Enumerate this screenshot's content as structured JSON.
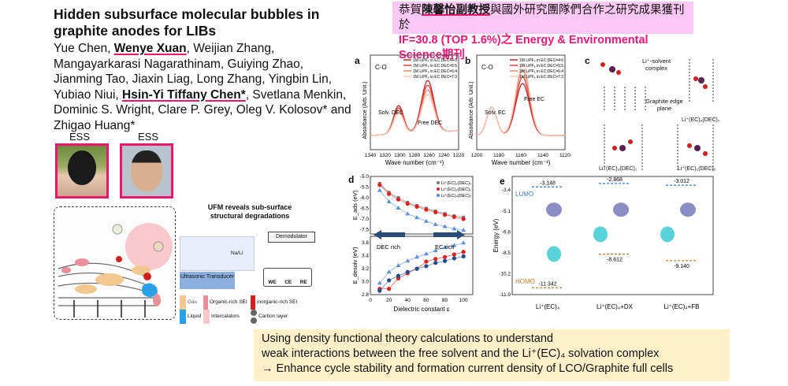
{
  "title": "Hidden subsurface molecular bubbles in graphite anodes for LIBs",
  "authors": {
    "a1": "Yue Chen, ",
    "a2": "Wenye Xuan",
    "a3": ", Weijian Zhang, Mangayarkarasi Nagarathinam, Guiying Zhao, Jianming Tao, Jiaxin Liag, Long Zhang, Yingbin Lin, Yubiao Niui, ",
    "a4": "Hsin-Yi Tiffany Chen*",
    "a5": ", Svetlana Menkin, Dominic S. Wright, Clare P. Grey, Oleg V. Kolosov* and Zhigao Huang*"
  },
  "photos": [
    {
      "label": "ESS"
    },
    {
      "label": "ESS"
    }
  ],
  "banner": {
    "pre": "恭賀",
    "name": "陳馨怡副教授",
    "post": "與國外研究團隊們合作之研究成果獲刊於",
    "line2": "IF=30.8 (TOP 1.6%)之 Energy & Environmental Science期刊"
  },
  "schematic": {
    "title": "UFM reveals sub-surface structural degradations",
    "demodulator": "Demodulator",
    "nali": "Na/Li",
    "transducer": "Ultrasonic Transducer",
    "we": "WE",
    "ce": "CE",
    "re": "RE",
    "legend": [
      "Gas",
      "Organic-rich SEI",
      "inorganic-rich SEI",
      "Liquid",
      "Intercalators",
      "Carbon layer"
    ],
    "li": "Li⁺",
    "pf": "PF₆"
  },
  "panel_a": {
    "label": "a",
    "mode": "C-O",
    "ann1": "Solv. DEC",
    "ann2": "Free DEC",
    "xlabel": "Wave number (cm⁻¹)",
    "ylabel": "Absorbance (Arb. Unit.)",
    "xticks": [
      "1340",
      "1320",
      "1300",
      "1280",
      "1260",
      "1240",
      "1220"
    ]
  },
  "panel_b": {
    "label": "b",
    "mode": "C-O",
    "ann1": "Solv. EC",
    "ann2": "Free EC",
    "xlabel": "Wave number (cm⁻¹)",
    "ylabel": "Absorbance (Arb. Unit.)",
    "xticks": [
      "1200",
      "1180",
      "1160",
      "1140",
      "1120"
    ]
  },
  "spectra_legend": [
    "1M LiPF₆ in EC:DEC=4:6",
    "1M LiPF₆ in EC:DEC=5:5",
    "1M LiPF₆ in EC:DEC=6:4",
    "1M LiPF₆ in EC:DEC=7:3"
  ],
  "spectra_colors": [
    "#c0282c",
    "#e0403a",
    "#f08a70",
    "#f8c8b8"
  ],
  "panel_c": {
    "label": "c",
    "complex": "Li⁺-solvent complex",
    "graphite": "Graphite edge plane",
    "s1": "Li⁺(EC)₄(DEC)₀",
    "s2": "Li⁺(EC)₃(DEC)₁",
    "s3": "Li⁺(EC)₂(DEC)₂"
  },
  "chart_data": [
    {
      "type": "line",
      "panel": "d",
      "title": "",
      "xlabel": "Dielectric constant ε",
      "xlim": [
        0,
        110
      ],
      "xticks": [
        "0",
        "20",
        "40",
        "60",
        "80",
        "100"
      ],
      "x": [
        10,
        20,
        30,
        40,
        50,
        60,
        70,
        80,
        90,
        100
      ],
      "top": {
        "ylabel": "E_ads (eV)",
        "ylim": [
          -7.7,
          -5.0
        ],
        "yticks": [
          "-5.0",
          "-5.5",
          "-6.0",
          "-6.5",
          "-7.0",
          "-7.5"
        ],
        "series": [
          {
            "name": "Li⁺(EC)₂(DEC)₂",
            "color": "#777777",
            "values": [
              -5.33,
              -5.75,
              -6.0,
              -6.22,
              -6.37,
              -6.5,
              -6.63,
              -6.75,
              -6.85,
              -6.92
            ]
          },
          {
            "name": "Li⁺(EC)₃(DEC)₁",
            "color": "#e02020",
            "values": [
              -5.4,
              -5.82,
              -6.08,
              -6.28,
              -6.42,
              -6.56,
              -6.68,
              -6.8,
              -6.9,
              -7.0
            ]
          },
          {
            "name": "Li⁺(EC)₄(DEC)₀",
            "color": "#5b8fd6",
            "values": [
              -5.65,
              -6.18,
              -6.48,
              -6.75,
              -6.93,
              -7.1,
              -7.25,
              -7.35,
              -7.45,
              -7.52
            ]
          }
        ]
      },
      "bottom": {
        "ylabel": "E_desolv (eV)",
        "ylim": [
          2.8,
          3.7
        ],
        "yticks": [
          "2.8",
          "3.0",
          "3.2",
          "3.4",
          "3.6"
        ],
        "series": [
          {
            "name": "Li⁺(EC)₄(DEC)₀",
            "color": "#5b8fd6",
            "values": [
              2.98,
              3.15,
              3.25,
              3.32,
              3.38,
              3.43,
              3.48,
              3.53,
              3.56,
              3.6
            ]
          },
          {
            "name": "Li⁺(EC)₃(DEC)₁",
            "color": "#e02020",
            "values": [
              2.89,
              2.89,
              3.05,
              3.13,
              3.2,
              3.31,
              3.35,
              3.38,
              3.42,
              3.46
            ]
          },
          {
            "name": "Li⁺(EC)₂(DEC)₂",
            "color": "#1f4e8c",
            "values": [
              2.86,
              3.02,
              3.09,
              3.15,
              3.2,
              3.24,
              3.29,
              3.32,
              3.36,
              3.39
            ]
          }
        ]
      },
      "arrows": [
        "DEC rich",
        "EC rich"
      ],
      "label": "d"
    },
    {
      "type": "levels",
      "panel": "e",
      "label": "e",
      "ylabel": "Energy (eV)",
      "ylim": [
        -11.9,
        -2.3
      ],
      "yticks": [
        "-3.4",
        "-5.1",
        "-6.8",
        "-8.5",
        "-10.2",
        "-11.9"
      ],
      "categories": [
        "Li⁺(EC)₄",
        "Li⁺(EC)₄+DX",
        "Li⁺(EC)₄+FB"
      ],
      "lumo": [
        -3.148,
        -2.868,
        -3.012
      ],
      "homo": [
        -11.342,
        -8.612,
        -9.14
      ],
      "lumo_labels": [
        "-3.148",
        "-2.868",
        "-3.012"
      ],
      "homo_labels": [
        "-11.342",
        "-8.612",
        "-9.140"
      ],
      "lumo_text": "LUMO",
      "homo_text": "HOMO",
      "lumo_color": "#3a78c0",
      "homo_color": "#c87a30"
    }
  ],
  "summary": {
    "l1": "Using density functional theory calculations to understand",
    "l2": "weak interactions between the free solvent and the Li⁺(EC)₄ solvation complex",
    "l3": "→ Enhance cycle stability and formation current density of LCO/Graphite full cells"
  }
}
